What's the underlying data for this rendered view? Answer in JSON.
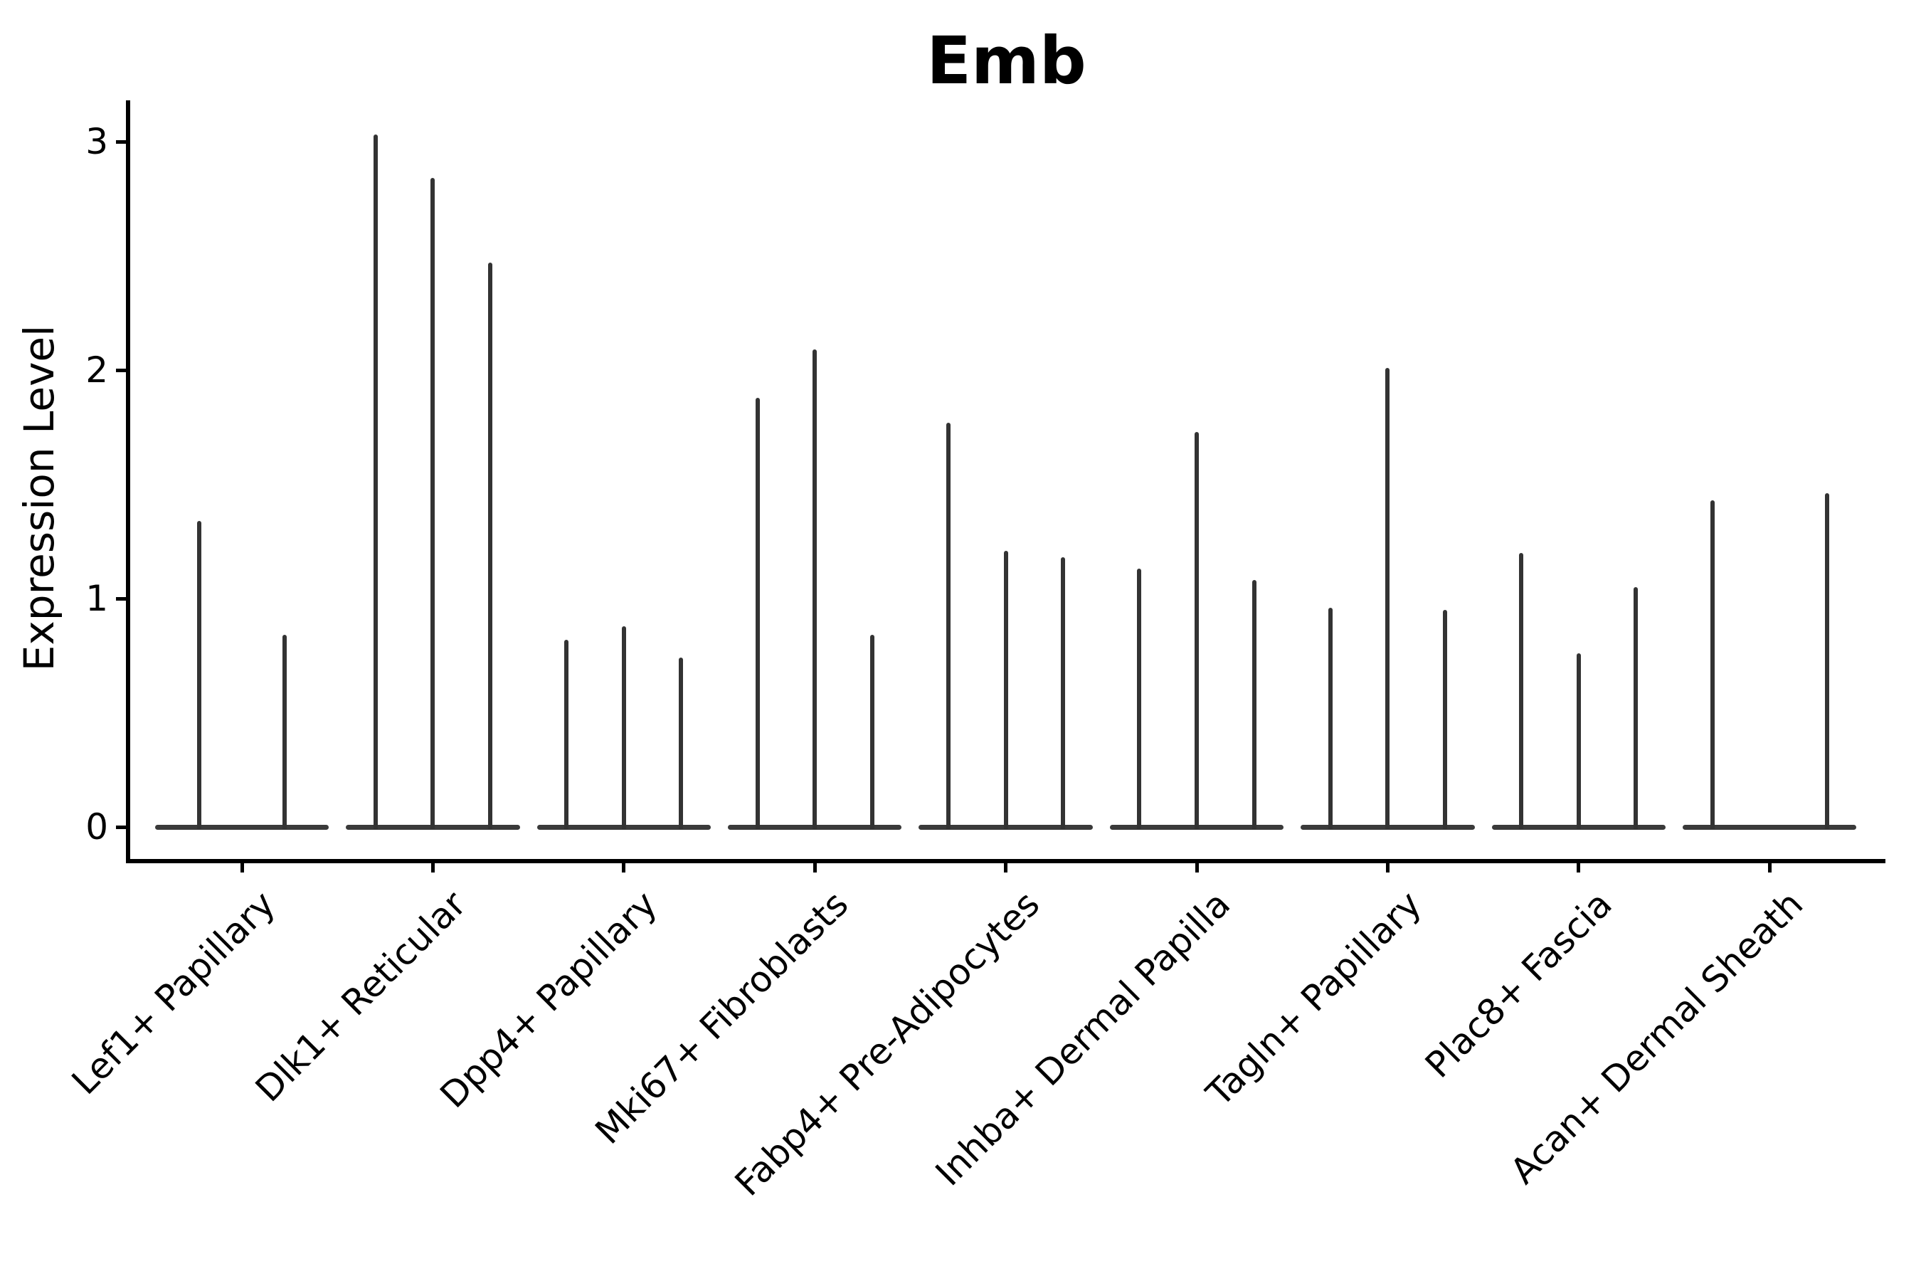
{
  "chart_data": {
    "type": "violin",
    "title": "Emb",
    "xlabel": "",
    "ylabel": "Expression Level",
    "yticks": [
      "0",
      "1",
      "2",
      "3"
    ],
    "ylim": [
      -0.16,
      3.18
    ],
    "grid": false,
    "legend": null,
    "colors": {
      "violin_line": "#333333",
      "baseline": "#3a3a3a",
      "axis": "#000000",
      "background": "#ffffff"
    },
    "note": "Collapsed violin plot: each cell-type group shows 2-3 near-zero-width violins (vertical spikes) rising from a flat zero-expression baseline. Spike value = maximum expression level reached.",
    "group_baseline_halfwidth_units": 0.455,
    "categories": [
      "Lef1+ Papillary",
      "Dlk1+ Reticular",
      "Dpp4+ Papillary",
      "Mki67+ Fibroblasts",
      "Fabp4+ Pre-Adipocytes",
      "Inhba+ Dermal Papilla",
      "Tagln+ Papillary",
      "Plac8+ Fascia",
      "Acan+ Dermal Sheath"
    ],
    "groups": [
      {
        "label": "Lef1+ Papillary",
        "violins": [
          {
            "offset": -0.225,
            "max": 1.34
          },
          {
            "offset": 0.225,
            "max": 0.84
          }
        ]
      },
      {
        "label": "Dlk1+ Reticular",
        "violins": [
          {
            "offset": -0.3,
            "max": 3.03
          },
          {
            "offset": 0,
            "max": 2.84
          },
          {
            "offset": 0.3,
            "max": 2.47
          }
        ]
      },
      {
        "label": "Dpp4+ Papillary",
        "violins": [
          {
            "offset": -0.3,
            "max": 0.82
          },
          {
            "offset": 0,
            "max": 0.88
          },
          {
            "offset": 0.3,
            "max": 0.74
          }
        ]
      },
      {
        "label": "Mki67+ Fibroblasts",
        "violins": [
          {
            "offset": -0.3,
            "max": 1.88
          },
          {
            "offset": 0,
            "max": 2.09
          },
          {
            "offset": 0.3,
            "max": 0.84
          }
        ]
      },
      {
        "label": "Fabp4+ Pre-Adipocytes",
        "violins": [
          {
            "offset": -0.3,
            "max": 1.77
          },
          {
            "offset": 0,
            "max": 1.21
          },
          {
            "offset": 0.3,
            "max": 1.18
          }
        ]
      },
      {
        "label": "Inhba+ Dermal Papilla",
        "violins": [
          {
            "offset": -0.3,
            "max": 1.13
          },
          {
            "offset": 0,
            "max": 1.73
          },
          {
            "offset": 0.3,
            "max": 1.08
          }
        ]
      },
      {
        "label": "Tagln+ Papillary",
        "violins": [
          {
            "offset": -0.3,
            "max": 0.96
          },
          {
            "offset": 0,
            "max": 2.01
          },
          {
            "offset": 0.3,
            "max": 0.95
          }
        ]
      },
      {
        "label": "Plac8+ Fascia",
        "violins": [
          {
            "offset": -0.3,
            "max": 1.2
          },
          {
            "offset": 0,
            "max": 0.76
          },
          {
            "offset": 0.3,
            "max": 1.05
          }
        ]
      },
      {
        "label": "Acan+ Dermal Sheath",
        "violins": [
          {
            "offset": -0.3,
            "max": 1.43
          },
          {
            "offset": 0,
            "max": 0.0
          },
          {
            "offset": 0.3,
            "max": 1.46
          }
        ]
      }
    ]
  }
}
